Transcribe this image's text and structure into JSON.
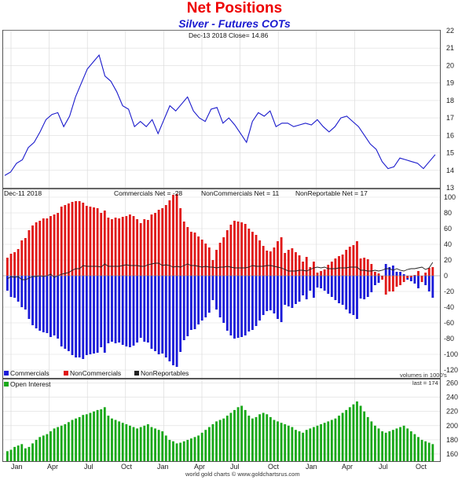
{
  "header": {
    "title": "Net Positions",
    "subtitle": "Silver - Futures COTs"
  },
  "footer": {
    "credit": "world gold charts © www.goldchartsrus.com"
  },
  "colors": {
    "price_line": "#1a1acc",
    "commercials": "#1a1ad8",
    "noncommercials": "#e01818",
    "nonreportables_line": "#222222",
    "open_interest": "#19a819"
  },
  "chart_data": [
    {
      "type": "line",
      "panel": "price",
      "header_text": "Dec-13  2018   Close= 14.86",
      "ylim": [
        13,
        22
      ],
      "yticks": [
        "13",
        "14",
        "15",
        "16",
        "17",
        "18",
        "19",
        "20",
        "21",
        "22"
      ],
      "x_anchor_labels": [
        "Jan",
        "Apr",
        "Jul",
        "Oct",
        "Jan",
        "Apr",
        "Jul",
        "Oct",
        "Jan",
        "Apr",
        "Jul",
        "Oct"
      ],
      "series": [
        {
          "values": [
            13.7,
            13.9,
            14.4,
            14.6,
            15.3,
            15.6,
            16.2,
            16.9,
            17.2,
            17.3,
            16.5,
            17.1,
            18.2,
            19.0,
            19.8,
            20.2,
            20.6,
            19.4,
            19.1,
            18.5,
            17.7,
            17.5,
            16.5,
            16.8,
            16.5,
            16.9,
            16.1,
            16.9,
            17.7,
            17.4,
            17.8,
            18.2,
            17.4,
            17.0,
            16.8,
            17.5,
            17.6,
            16.7,
            17.0,
            16.6,
            16.1,
            15.6,
            16.8,
            17.3,
            17.1,
            17.4,
            16.5,
            16.7,
            16.7,
            16.5,
            16.6,
            16.7,
            16.6,
            16.9,
            16.5,
            16.2,
            16.5,
            17.0,
            17.1,
            16.8,
            16.5,
            16.0,
            15.5,
            15.2,
            14.5,
            14.1,
            14.2,
            14.7,
            14.6,
            14.5,
            14.4,
            14.1,
            14.5,
            14.9
          ]
        }
      ]
    },
    {
      "type": "bar",
      "panel": "net_positions",
      "header_date": "Dec-11  2018",
      "header_values": [
        "Commercials Net = -28",
        "NonCommercials Net = 11",
        "NonReportable Net = 17"
      ],
      "ylim": [
        -130,
        110
      ],
      "yticks": [
        "-120",
        "-100",
        "-80",
        "-60",
        "-40",
        "-20",
        "0",
        "20",
        "40",
        "60",
        "80",
        "100"
      ],
      "legend": [
        "Commercials",
        "NonCommercials",
        "NonReportables"
      ],
      "volume_note": "volumes in 1000's",
      "series": [
        {
          "name": "Commercials",
          "values": [
            -19,
            -27,
            -28,
            -33,
            -40,
            -43,
            -55,
            -63,
            -67,
            -70,
            -72,
            -73,
            -78,
            -76,
            -80,
            -90,
            -93,
            -96,
            -101,
            -104,
            -104,
            -106,
            -101,
            -100,
            -99,
            -98,
            -91,
            -98,
            -86,
            -84,
            -86,
            -85,
            -88,
            -90,
            -91,
            -89,
            -85,
            -79,
            -84,
            -85,
            -93,
            -96,
            -100,
            -99,
            -104,
            -109,
            -114,
            -116,
            -97,
            -82,
            -77,
            -69,
            -68,
            -62,
            -57,
            -53,
            -47,
            -31,
            -43,
            -53,
            -60,
            -70,
            -76,
            -80,
            -79,
            -78,
            -76,
            -71,
            -69,
            -64,
            -57,
            -50,
            -45,
            -44,
            -48,
            -55,
            -59,
            -37,
            -39,
            -41,
            -36,
            -33,
            -25,
            -30,
            -19,
            -28,
            -15,
            -16,
            -19,
            -23,
            -27,
            -31,
            -35,
            -37,
            -43,
            -48,
            -50,
            -55,
            -29,
            -30,
            -27,
            -21,
            -12,
            -9,
            -2,
            15,
            11,
            13,
            5,
            5,
            2,
            -5,
            -7,
            -10,
            -16,
            -3,
            -12,
            -20,
            -28
          ]
        },
        {
          "name": "NonCommercials",
          "values": [
            23,
            28,
            30,
            34,
            45,
            48,
            58,
            64,
            68,
            70,
            73,
            73,
            76,
            78,
            80,
            88,
            90,
            92,
            94,
            95,
            95,
            93,
            89,
            88,
            87,
            86,
            80,
            83,
            74,
            72,
            74,
            73,
            75,
            76,
            78,
            76,
            72,
            67,
            72,
            71,
            78,
            80,
            84,
            86,
            90,
            96,
            103,
            104,
            86,
            69,
            62,
            56,
            55,
            50,
            46,
            41,
            36,
            20,
            33,
            42,
            49,
            58,
            65,
            70,
            69,
            68,
            66,
            60,
            56,
            52,
            45,
            38,
            32,
            31,
            36,
            44,
            49,
            29,
            33,
            35,
            30,
            26,
            18,
            24,
            11,
            18,
            4,
            6,
            8,
            14,
            18,
            22,
            25,
            27,
            33,
            37,
            39,
            44,
            22,
            23,
            21,
            15,
            5,
            3,
            -5,
            -24,
            -20,
            -20,
            -14,
            -12,
            -8,
            -3,
            -2,
            1,
            6,
            -8,
            4,
            10,
            11
          ]
        },
        {
          "name": "NonReportables",
          "values": [
            -4,
            -1,
            -2,
            -1,
            -5,
            -5,
            -3,
            -1,
            -1,
            0,
            -1,
            0,
            2,
            -2,
            0,
            2,
            3,
            4,
            7,
            9,
            9,
            13,
            12,
            12,
            12,
            12,
            11,
            15,
            12,
            12,
            12,
            12,
            13,
            14,
            13,
            13,
            13,
            12,
            12,
            14,
            15,
            16,
            16,
            13,
            14,
            13,
            11,
            12,
            11,
            13,
            15,
            13,
            13,
            12,
            11,
            12,
            11,
            11,
            10,
            11,
            11,
            12,
            11,
            10,
            10,
            10,
            10,
            11,
            13,
            12,
            12,
            12,
            13,
            13,
            12,
            11,
            10,
            8,
            6,
            6,
            6,
            7,
            7,
            6,
            8,
            10,
            11,
            10,
            11,
            9,
            9,
            9,
            10,
            10,
            10,
            11,
            11,
            11,
            7,
            7,
            6,
            6,
            7,
            6,
            7,
            9,
            9,
            7,
            9,
            7,
            6,
            8,
            9,
            9,
            10,
            11,
            8,
            10,
            17
          ]
        }
      ]
    },
    {
      "type": "bar",
      "panel": "open_interest",
      "legend": [
        "Open Interest"
      ],
      "last_label": "last = 174",
      "ylim": [
        150,
        265
      ],
      "yticks": [
        "160",
        "180",
        "200",
        "220",
        "240",
        "260"
      ],
      "x_tick_labels": [
        "Jan",
        "Apr",
        "Jul",
        "Oct",
        "Jan",
        "Apr",
        "Jul",
        "Oct"
      ],
      "series": [
        {
          "name": "Open Interest",
          "values": [
            164,
            166,
            170,
            172,
            174,
            168,
            170,
            175,
            180,
            184,
            186,
            188,
            192,
            196,
            198,
            200,
            202,
            205,
            208,
            210,
            212,
            215,
            216,
            218,
            220,
            222,
            223,
            226,
            214,
            210,
            208,
            206,
            204,
            202,
            200,
            198,
            196,
            198,
            200,
            202,
            198,
            196,
            194,
            192,
            186,
            180,
            178,
            175,
            176,
            178,
            180,
            182,
            184,
            186,
            190,
            194,
            198,
            202,
            206,
            208,
            210,
            214,
            218,
            222,
            226,
            228,
            222,
            214,
            210,
            212,
            216,
            218,
            216,
            212,
            208,
            206,
            204,
            202,
            200,
            198,
            194,
            192,
            190,
            194,
            196,
            198,
            200,
            202,
            204,
            206,
            208,
            210,
            214,
            218,
            222,
            226,
            230,
            234,
            228,
            220,
            212,
            206,
            200,
            196,
            192,
            190,
            192,
            194,
            196,
            198,
            200,
            196,
            192,
            188,
            184,
            180,
            178,
            176,
            174
          ]
        }
      ]
    }
  ]
}
